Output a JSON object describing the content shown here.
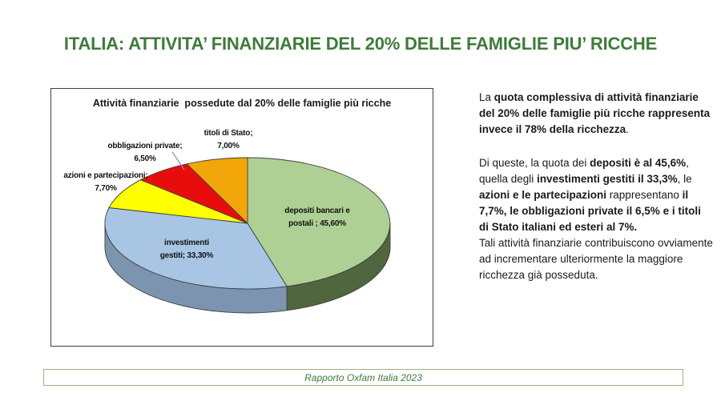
{
  "slide": {
    "title": "ITALIA: ATTIVITA’ FINANZIARIE DEL 20% DELLE FAMIGLIE PIU’ RICCHE",
    "footer": "Rapporto Oxfam Italia 2023"
  },
  "colors": {
    "title_green": "#3E7B3A",
    "footer_border": "#9BB383",
    "chart_border": "#404040",
    "text_ink": "#1A1A1A",
    "leader_line": "#8096AC"
  },
  "chart_data": {
    "type": "pie",
    "style": "3d",
    "title": "Attività finanziarie  possedute dal 20% delle famiglie più ricche",
    "unit": "%",
    "direction": "clockwise",
    "start_angle_deg": 0,
    "legend": "none",
    "data_labels": "category-and-percent",
    "series": [
      {
        "label": "depositi bancari e postali",
        "value": 45.6,
        "display": "depositi bancari e\npostali ; 45,60%",
        "color": "#AFD095",
        "side_color": "#4F663E"
      },
      {
        "label": "investimenti gestiti",
        "value": 33.3,
        "display": "investimenti\ngestiti; 33,30%",
        "color": "#A8C6E4",
        "side_color": "#7C94AF"
      },
      {
        "label": "azioni e partecipazioni",
        "value": 7.7,
        "display": "azioni e partecipazioni;\n7,70%",
        "color": "#FFFF00"
      },
      {
        "label": "obbligazioni private",
        "value": 6.5,
        "display": "obbligazioni private;\n6,50%",
        "color": "#E80D0D"
      },
      {
        "label": "titoli di Stato",
        "value": 7.0,
        "display": "titoli di Stato;\n7,00%",
        "color": "#F2A609"
      }
    ]
  },
  "body": {
    "para1": [
      {
        "t": "La ",
        "b": false
      },
      {
        "t": "quota complessiva di attività finanziarie del 20% delle famiglie più ricche rappresenta invece il 78% della ricchezza",
        "b": true
      },
      {
        "t": ".",
        "b": false
      }
    ],
    "para2": [
      {
        "t": "Di queste, la quota dei ",
        "b": false
      },
      {
        "t": "depositi è al 45,6%",
        "b": true
      },
      {
        "t": ", quella degli ",
        "b": false
      },
      {
        "t": "investimenti gestiti il 33,3%",
        "b": true
      },
      {
        "t": ", le ",
        "b": false
      },
      {
        "t": "azioni e le partecipazioni",
        "b": true
      },
      {
        "t": " rappresentano ",
        "b": false
      },
      {
        "t": "il 7,7%, le obbligazioni private il 6,5% e i titoli di Stato italiani ed esteri al 7%.",
        "b": true
      }
    ],
    "para3": [
      {
        "t": "Tali attività finanziarie contribuiscono ovviamente ad incrementare ulteriormente la maggiore ricchezza già posseduta.",
        "b": false
      }
    ]
  }
}
